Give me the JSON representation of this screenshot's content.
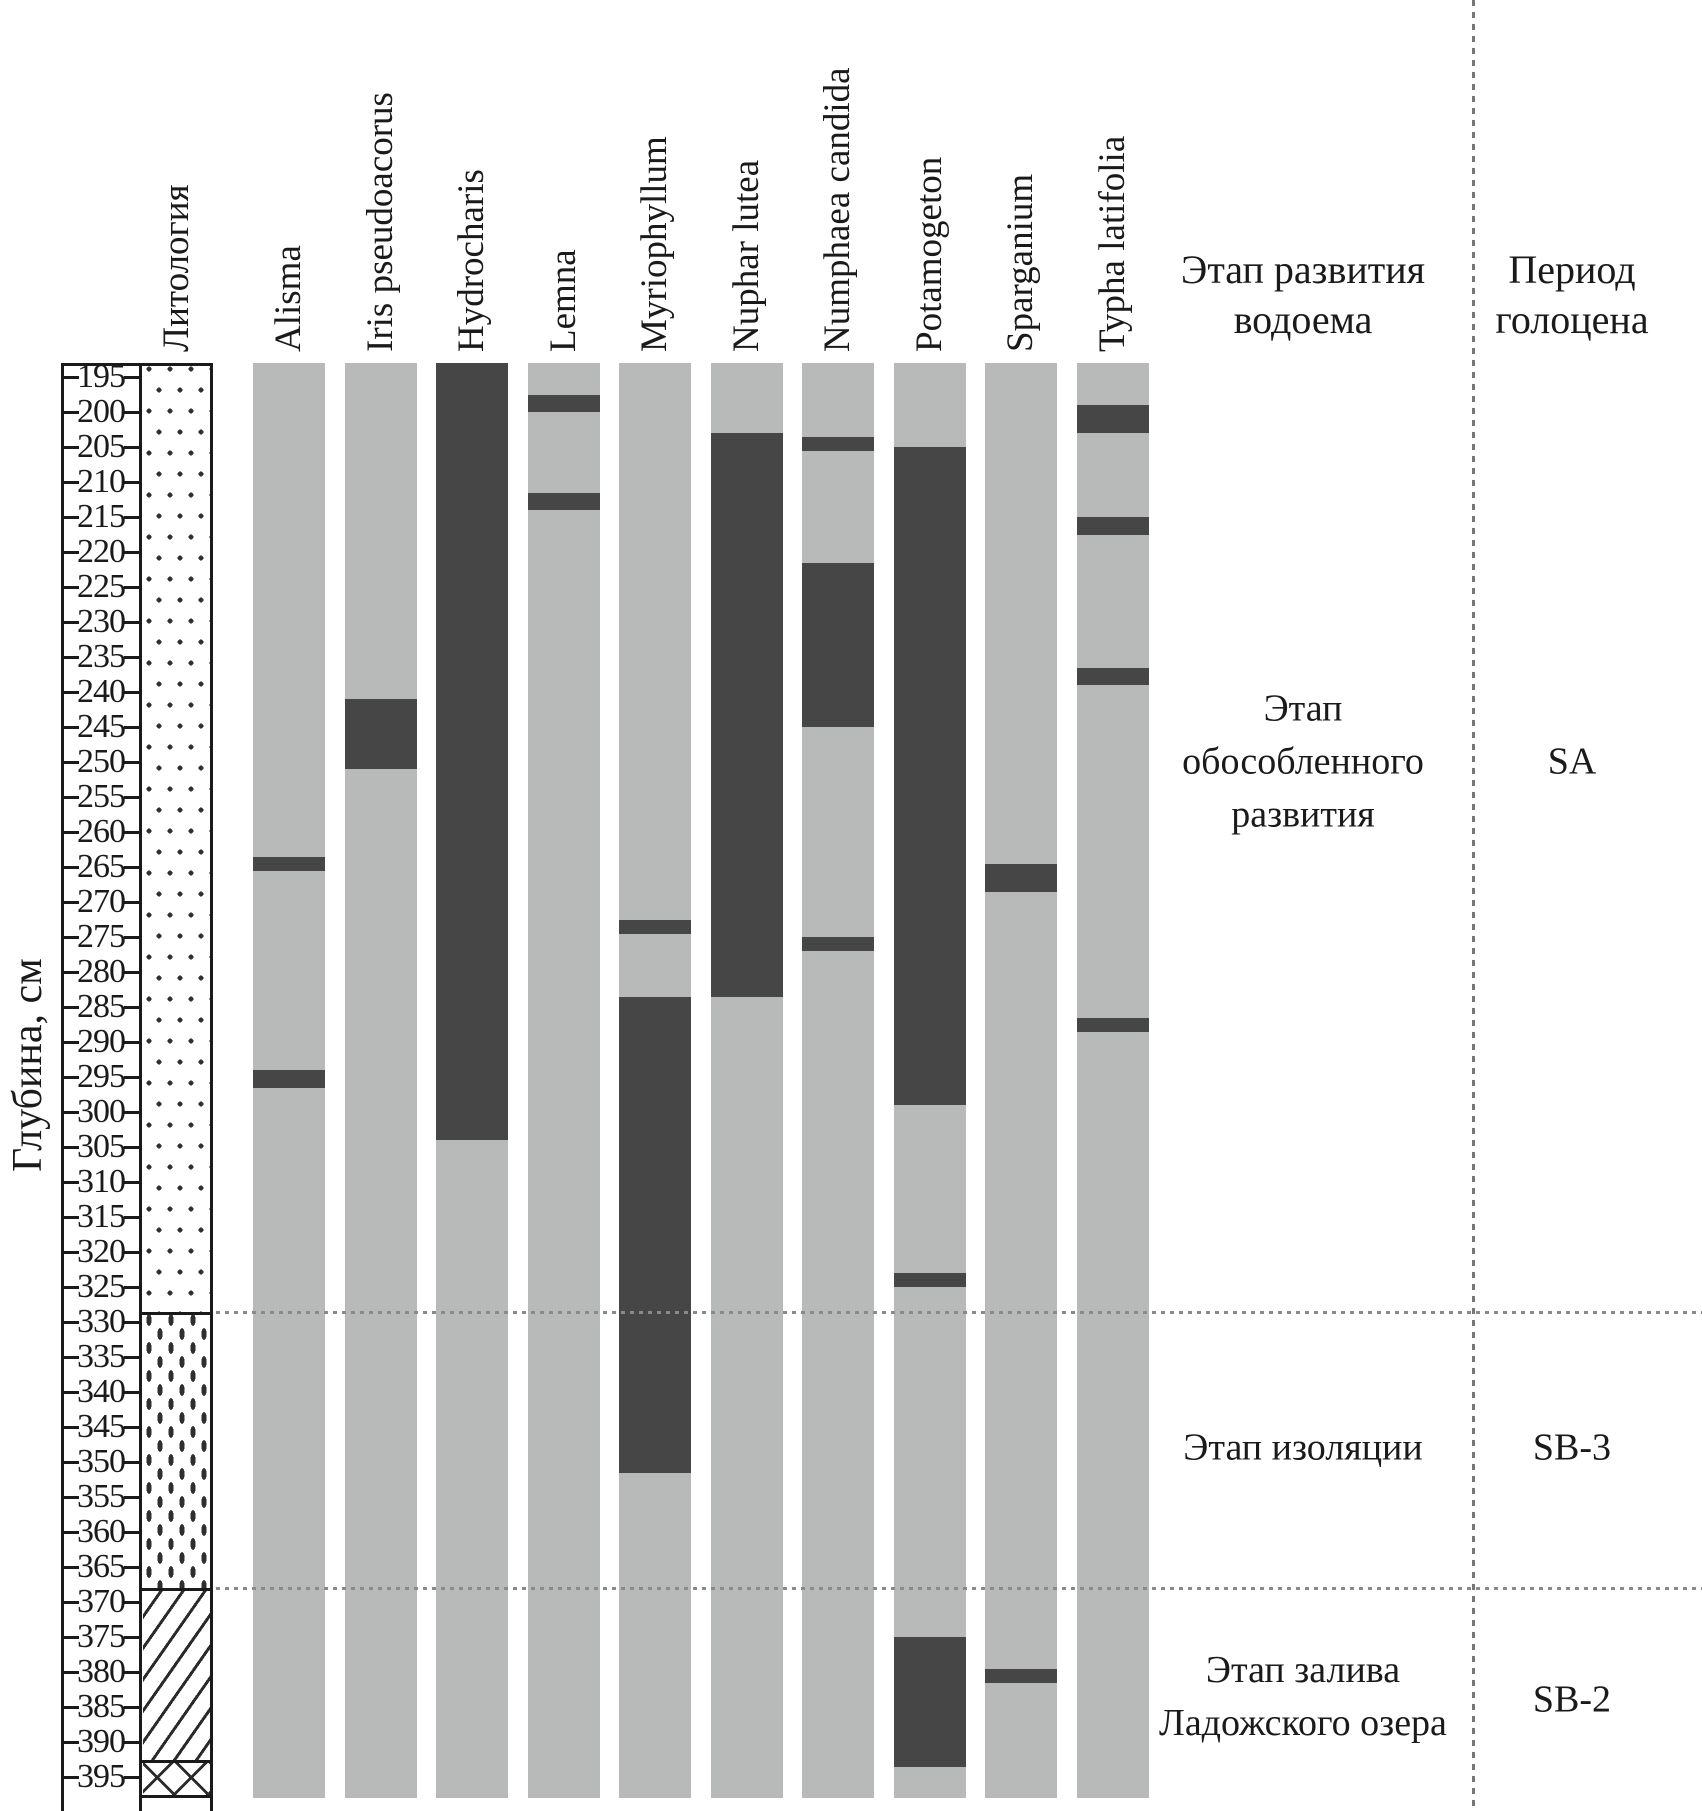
{
  "chart_data": {
    "type": "bar",
    "subtype": "stratigraphic-presence-diagram",
    "depth_axis": {
      "label": "Глубина, см",
      "unit": "см",
      "tick_min": 195,
      "tick_max": 395,
      "tick_step": 5,
      "column_top_cm": 193,
      "column_bottom_cm": 398
    },
    "lithology": {
      "header": "Литология",
      "sections": [
        {
          "pattern": "dots",
          "from_cm": 193,
          "to_cm": 328.5
        },
        {
          "pattern": "dashes",
          "from_cm": 328.5,
          "to_cm": 368
        },
        {
          "pattern": "diagonal-hatch",
          "from_cm": 368,
          "to_cm": 392.5
        },
        {
          "pattern": "cross-hatch",
          "from_cm": 392.5,
          "to_cm": 397.5
        }
      ]
    },
    "taxa": [
      {
        "name": "Alisma",
        "presence_intervals_cm": [
          [
            263.5,
            265.5
          ],
          [
            294,
            296.5
          ]
        ]
      },
      {
        "name": "Iris pseudoacorus",
        "presence_intervals_cm": [
          [
            241,
            251
          ]
        ]
      },
      {
        "name": "Hydrocharis",
        "presence_intervals_cm": [
          [
            193,
            304
          ]
        ]
      },
      {
        "name": "Lemna",
        "presence_intervals_cm": [
          [
            197.5,
            200
          ],
          [
            211.5,
            214
          ]
        ]
      },
      {
        "name": "Myriophyllum",
        "presence_intervals_cm": [
          [
            272.5,
            274.5
          ],
          [
            283.5,
            351.5
          ]
        ]
      },
      {
        "name": "Nuphar lutea",
        "presence_intervals_cm": [
          [
            203,
            283.5
          ]
        ]
      },
      {
        "name": "Numphaea candida",
        "presence_intervals_cm": [
          [
            203.5,
            205.5
          ],
          [
            221.5,
            245
          ],
          [
            275,
            277
          ]
        ]
      },
      {
        "name": "Potamogeton",
        "presence_intervals_cm": [
          [
            205,
            299
          ],
          [
            323,
            325
          ],
          [
            375,
            393.5
          ]
        ]
      },
      {
        "name": "Sparganium",
        "presence_intervals_cm": [
          [
            264.5,
            268.5
          ],
          [
            379.5,
            381.5
          ]
        ]
      },
      {
        "name": "Typha latifolia",
        "presence_intervals_cm": [
          [
            199,
            203
          ],
          [
            215,
            217.5
          ],
          [
            236.5,
            239
          ],
          [
            286.5,
            288.5
          ]
        ]
      }
    ],
    "zone_boundaries_cm": [
      328.5,
      368
    ],
    "zones": [
      {
        "stage": "Этап обособленного развития",
        "period": "SA",
        "from_cm": 193,
        "to_cm": 328.5,
        "stage_label_cm": 250,
        "period_label_cm": 250
      },
      {
        "stage": "Этап изоляции",
        "period": "SB-3",
        "from_cm": 328.5,
        "to_cm": 368,
        "stage_label_cm": 348,
        "period_label_cm": 348
      },
      {
        "stage": "Этап залива Ладожского озера",
        "period": "SB-2",
        "from_cm": 368,
        "to_cm": 398,
        "stage_label_cm": 383.5,
        "period_label_cm": 384
      }
    ],
    "column_headers": {
      "stage_column": "Этап развития водоема",
      "period_column": "Период голоцена"
    },
    "colors": {
      "bar_background": "#b7bab9",
      "presence_segment": "#464646",
      "line_ink": "#1a1a1a",
      "pattern_ink": "#2f2f2f",
      "dotted_divider": "#8a8a8a"
    },
    "legend_position": "none",
    "grid": "off"
  }
}
